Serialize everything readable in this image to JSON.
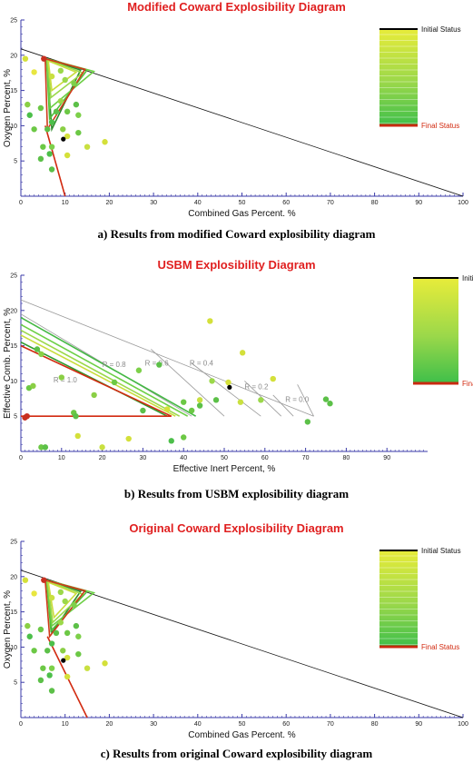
{
  "panels": [
    {
      "title": "Modified Coward Explosibility Diagram",
      "caption": "a) Results from modified Coward explosibility diagram",
      "chart_data": {
        "type": "scatter",
        "title": "Modified Coward Explosibility Diagram",
        "xlabel": "Combined Gas Percent. %",
        "ylabel": "Oxygen Percent, %",
        "xlim": [
          0,
          100
        ],
        "ylim": [
          0,
          25
        ],
        "xticks": [
          0,
          10,
          20,
          30,
          40,
          50,
          60,
          70,
          80,
          90,
          100
        ],
        "yticks": [
          5,
          10,
          15,
          20,
          25
        ],
        "legend": {
          "top": "Initial Status",
          "bottom": "Final Status",
          "placement": "top-right"
        },
        "boundary_line": [
          [
            0,
            20.9
          ],
          [
            100,
            0
          ]
        ],
        "triangles": [
          {
            "color": "#2e8b2e",
            "points": [
              [
                5.8,
                19.5
              ],
              [
                13.5,
                17.9
              ],
              [
                7,
                9.5
              ]
            ]
          },
          {
            "color": "#4fbf3a",
            "points": [
              [
                5.8,
                19.5
              ],
              [
                15,
                17.9
              ],
              [
                6.5,
                11
              ]
            ]
          },
          {
            "color": "#6ccf45",
            "points": [
              [
                5.8,
                19.5
              ],
              [
                16.5,
                17.7
              ],
              [
                6.6,
                12.5
              ]
            ]
          },
          {
            "color": "#9bd84a",
            "points": [
              [
                6,
                19.4
              ],
              [
                14,
                17.5
              ],
              [
                6.8,
                14
              ]
            ]
          },
          {
            "color": "#c9dc3c",
            "points": [
              [
                6.2,
                19.2
              ],
              [
                12.5,
                17.6
              ],
              [
                7,
                15
              ]
            ]
          },
          {
            "color": "#d03a1a",
            "points": [
              [
                5.5,
                19.5
              ],
              [
                14.5,
                18
              ],
              [
                6,
                9.5
              ]
            ]
          }
        ],
        "final_line": [
          [
            5.5,
            10
          ],
          [
            10,
            0
          ]
        ],
        "points": [
          {
            "x": 1,
            "y": 19.5,
            "c": "#d4e03a"
          },
          {
            "x": 1.5,
            "y": 13,
            "c": "#8acf45"
          },
          {
            "x": 3,
            "y": 17.6,
            "c": "#e8e640"
          },
          {
            "x": 4.5,
            "y": 12.5,
            "c": "#6cc845"
          },
          {
            "x": 2,
            "y": 11.5,
            "c": "#4cbf4a"
          },
          {
            "x": 3,
            "y": 9.5,
            "c": "#6cc845"
          },
          {
            "x": 5.2,
            "y": 19.5,
            "c": "#c83020"
          },
          {
            "x": 7,
            "y": 17,
            "c": "#c9e040"
          },
          {
            "x": 9,
            "y": 17.8,
            "c": "#9bd84a"
          },
          {
            "x": 10,
            "y": 16.5,
            "c": "#9bd84a"
          },
          {
            "x": 12,
            "y": 16,
            "c": "#7dd04a"
          },
          {
            "x": 12.5,
            "y": 13,
            "c": "#5cc048"
          },
          {
            "x": 13,
            "y": 11.5,
            "c": "#7dd04a"
          },
          {
            "x": 9,
            "y": 13.5,
            "c": "#9bd84a"
          },
          {
            "x": 8,
            "y": 12,
            "c": "#5cc048"
          },
          {
            "x": 7,
            "y": 10.5,
            "c": "#4cbf4a"
          },
          {
            "x": 6,
            "y": 9.5,
            "c": "#5cc048"
          },
          {
            "x": 9.5,
            "y": 9.5,
            "c": "#8acf45"
          },
          {
            "x": 10.5,
            "y": 8.5,
            "c": "#d4e03a"
          },
          {
            "x": 9.6,
            "y": 8.1,
            "c": "#000000"
          },
          {
            "x": 5,
            "y": 7,
            "c": "#6cc845"
          },
          {
            "x": 7,
            "y": 7,
            "c": "#7dd04a"
          },
          {
            "x": 6.5,
            "y": 6,
            "c": "#4cbf4a"
          },
          {
            "x": 4.5,
            "y": 5.3,
            "c": "#5cc048"
          },
          {
            "x": 7,
            "y": 3.8,
            "c": "#5cc048"
          },
          {
            "x": 10.5,
            "y": 5.8,
            "c": "#d4e03a"
          },
          {
            "x": 15,
            "y": 7,
            "c": "#c9e040"
          },
          {
            "x": 19,
            "y": 7.7,
            "c": "#d4e03a"
          },
          {
            "x": 13,
            "y": 9,
            "c": "#6cc845"
          },
          {
            "x": 10.5,
            "y": 12,
            "c": "#6cc845"
          }
        ]
      }
    },
    {
      "title": "USBM Explosibility Diagram",
      "caption": "b) Results from USBM explosibility diagram",
      "chart_data": {
        "type": "scatter",
        "title": "USBM Explosibility Diagram",
        "xlabel": "Effective Inert Percent, %",
        "ylabel": "Effective Comb. Percent, %",
        "xlim": [
          0,
          100
        ],
        "ylim": [
          0,
          25
        ],
        "xticks": [
          0,
          10,
          20,
          30,
          40,
          50,
          60,
          70,
          80,
          90
        ],
        "yticks": [
          5,
          10,
          15,
          20,
          25
        ],
        "legend": {
          "top": "Initial Status",
          "bottom": "Final Status",
          "placement": "top-right"
        },
        "r_labels": [
          {
            "text": "R = 1.0",
            "x": 8,
            "y": 9.8
          },
          {
            "text": "R = 0.8",
            "x": 20,
            "y": 12
          },
          {
            "text": "R = 0.6",
            "x": 30.5,
            "y": 12.2
          },
          {
            "text": "R = 0.4",
            "x": 41.5,
            "y": 12.2
          },
          {
            "text": "R = 0.2",
            "x": 55,
            "y": 8.8
          },
          {
            "text": "R = 0.0",
            "x": 65,
            "y": 7
          }
        ],
        "gray_lines": [
          [
            [
              0,
              21.5
            ],
            [
              72,
              5
            ]
          ],
          [
            [
              42,
              5
            ],
            [
              0,
              19.5
            ]
          ],
          [
            [
              72,
              5
            ],
            [
              68,
              9.5
            ]
          ],
          [
            [
              50,
              5
            ],
            [
              32,
              14.5
            ]
          ],
          [
            [
              59,
              5
            ],
            [
              42,
              12.5
            ]
          ],
          [
            [
              64,
              5
            ],
            [
              55,
              10
            ]
          ],
          [
            [
              67,
              5
            ],
            [
              62,
              8
            ]
          ]
        ],
        "green_lines": [
          {
            "color": "#44b844",
            "points": [
              [
                0,
                19
              ],
              [
                43,
                5
              ]
            ]
          },
          {
            "color": "#6ccf45",
            "points": [
              [
                0,
                18
              ],
              [
                41,
                5
              ]
            ]
          },
          {
            "color": "#9bd84a",
            "points": [
              [
                0,
                17.2
              ],
              [
                39,
                5
              ]
            ]
          },
          {
            "color": "#c9dc3c",
            "points": [
              [
                0,
                16.5
              ],
              [
                38,
                5
              ]
            ]
          },
          {
            "color": "#2e9b2e",
            "points": [
              [
                0,
                15.5
              ],
              [
                36,
                5
              ]
            ]
          }
        ],
        "red_lines": [
          {
            "points": [
              [
                0,
                15
              ],
              [
                37,
                5
              ]
            ]
          },
          {
            "points": [
              [
                0,
                5
              ],
              [
                37,
                5
              ]
            ]
          }
        ],
        "points": [
          {
            "x": 1,
            "y": 4.8,
            "c": "#c83020"
          },
          {
            "x": 1.5,
            "y": 5,
            "c": "#c83020"
          },
          {
            "x": 2,
            "y": 9,
            "c": "#6cc845"
          },
          {
            "x": 3,
            "y": 9.3,
            "c": "#8acf45"
          },
          {
            "x": 4,
            "y": 14.5,
            "c": "#5cc048"
          },
          {
            "x": 5,
            "y": 13.8,
            "c": "#8acf45"
          },
          {
            "x": 10,
            "y": 10.5,
            "c": "#8acf45"
          },
          {
            "x": 13,
            "y": 5.5,
            "c": "#6cc845"
          },
          {
            "x": 13.5,
            "y": 5,
            "c": "#5cc048"
          },
          {
            "x": 14,
            "y": 2.2,
            "c": "#d4e03a"
          },
          {
            "x": 5,
            "y": 0.6,
            "c": "#6cc845"
          },
          {
            "x": 6,
            "y": 0.6,
            "c": "#5cc048"
          },
          {
            "x": 20,
            "y": 0.6,
            "c": "#c9e040"
          },
          {
            "x": 26.5,
            "y": 1.8,
            "c": "#d4e03a"
          },
          {
            "x": 18,
            "y": 8,
            "c": "#8acf45"
          },
          {
            "x": 23,
            "y": 9.8,
            "c": "#6cc845"
          },
          {
            "x": 29,
            "y": 11.5,
            "c": "#7dd04a"
          },
          {
            "x": 30,
            "y": 5.8,
            "c": "#5cc048"
          },
          {
            "x": 34,
            "y": 12.3,
            "c": "#5cc048"
          },
          {
            "x": 37,
            "y": 1.5,
            "c": "#4cbf4a"
          },
          {
            "x": 40,
            "y": 2,
            "c": "#6cc845"
          },
          {
            "x": 40,
            "y": 7,
            "c": "#6cc845"
          },
          {
            "x": 44,
            "y": 7.3,
            "c": "#c9e040"
          },
          {
            "x": 46.5,
            "y": 18.5,
            "c": "#d4e03a"
          },
          {
            "x": 47,
            "y": 10,
            "c": "#9bd84a"
          },
          {
            "x": 48,
            "y": 7.3,
            "c": "#5cc048"
          },
          {
            "x": 51,
            "y": 9.8,
            "c": "#d4e03a"
          },
          {
            "x": 51.3,
            "y": 9.1,
            "c": "#000000"
          },
          {
            "x": 54.5,
            "y": 14,
            "c": "#d4e03a"
          },
          {
            "x": 54,
            "y": 7,
            "c": "#c9e040"
          },
          {
            "x": 59,
            "y": 7.3,
            "c": "#9bd84a"
          },
          {
            "x": 62,
            "y": 10.3,
            "c": "#d4e03a"
          },
          {
            "x": 75,
            "y": 7.4,
            "c": "#5cc048"
          },
          {
            "x": 76,
            "y": 6.8,
            "c": "#5cc048"
          },
          {
            "x": 70.5,
            "y": 4.2,
            "c": "#5cc048"
          },
          {
            "x": 42,
            "y": 5.8,
            "c": "#6cc845"
          },
          {
            "x": 36,
            "y": 6,
            "c": "#d4e03a"
          },
          {
            "x": 44,
            "y": 6.5,
            "c": "#5cc048"
          }
        ]
      }
    },
    {
      "title": "Original Coward Explosibility Diagram",
      "caption": "c) Results from original Coward explosibility diagram",
      "chart_data": {
        "type": "scatter",
        "title": "Original Coward Explosibility Diagram",
        "xlabel": "Combined Gas Percent. %",
        "ylabel": "Oxygen Percent, %",
        "xlim": [
          0,
          100
        ],
        "ylim": [
          0,
          25
        ],
        "xticks": [
          0,
          10,
          20,
          30,
          40,
          50,
          60,
          70,
          80,
          90,
          100
        ],
        "yticks": [
          5,
          10,
          15,
          20,
          25
        ],
        "legend": {
          "top": "Initial Status",
          "bottom": "Final Status",
          "placement": "top-right"
        },
        "boundary_line": [
          [
            0,
            20.9
          ],
          [
            100,
            0
          ]
        ],
        "triangles": [
          {
            "color": "#2e8b2e",
            "points": [
              [
                5.8,
                19.5
              ],
              [
                13.5,
                17.9
              ],
              [
                7,
                12
              ]
            ]
          },
          {
            "color": "#4fbf3a",
            "points": [
              [
                5.8,
                19.5
              ],
              [
                15,
                17.9
              ],
              [
                6.8,
                12.3
              ]
            ]
          },
          {
            "color": "#6ccf45",
            "points": [
              [
                5.8,
                19.5
              ],
              [
                16.5,
                17.7
              ],
              [
                7,
                13
              ]
            ]
          },
          {
            "color": "#9bd84a",
            "points": [
              [
                6,
                19.4
              ],
              [
                14,
                17.5
              ],
              [
                7.2,
                13.5
              ]
            ]
          },
          {
            "color": "#c9dc3c",
            "points": [
              [
                6.2,
                19.2
              ],
              [
                12.5,
                17.6
              ],
              [
                7.5,
                14.2
              ]
            ]
          },
          {
            "color": "#d03a1a",
            "points": [
              [
                5.5,
                19.5
              ],
              [
                14.5,
                18
              ],
              [
                6.5,
                11.5
              ]
            ]
          }
        ],
        "final_line": [
          [
            6,
            11.5
          ],
          [
            15,
            0
          ]
        ],
        "points": [
          {
            "x": 1,
            "y": 19.5,
            "c": "#d4e03a"
          },
          {
            "x": 1.5,
            "y": 13,
            "c": "#8acf45"
          },
          {
            "x": 3,
            "y": 17.6,
            "c": "#e8e640"
          },
          {
            "x": 4.5,
            "y": 12.5,
            "c": "#6cc845"
          },
          {
            "x": 2,
            "y": 11.5,
            "c": "#4cbf4a"
          },
          {
            "x": 3,
            "y": 9.5,
            "c": "#6cc845"
          },
          {
            "x": 5.2,
            "y": 19.5,
            "c": "#c83020"
          },
          {
            "x": 7,
            "y": 17,
            "c": "#c9e040"
          },
          {
            "x": 9,
            "y": 17.8,
            "c": "#9bd84a"
          },
          {
            "x": 10,
            "y": 16.5,
            "c": "#9bd84a"
          },
          {
            "x": 12,
            "y": 16,
            "c": "#7dd04a"
          },
          {
            "x": 12.5,
            "y": 13,
            "c": "#5cc048"
          },
          {
            "x": 13,
            "y": 11.5,
            "c": "#7dd04a"
          },
          {
            "x": 9,
            "y": 13.5,
            "c": "#9bd84a"
          },
          {
            "x": 8,
            "y": 12,
            "c": "#5cc048"
          },
          {
            "x": 7,
            "y": 10.5,
            "c": "#4cbf4a"
          },
          {
            "x": 6,
            "y": 9.5,
            "c": "#5cc048"
          },
          {
            "x": 9.5,
            "y": 9.5,
            "c": "#8acf45"
          },
          {
            "x": 10.5,
            "y": 8.5,
            "c": "#d4e03a"
          },
          {
            "x": 9.6,
            "y": 8.1,
            "c": "#000000"
          },
          {
            "x": 5,
            "y": 7,
            "c": "#6cc845"
          },
          {
            "x": 7,
            "y": 7,
            "c": "#7dd04a"
          },
          {
            "x": 6.5,
            "y": 6,
            "c": "#4cbf4a"
          },
          {
            "x": 4.5,
            "y": 5.3,
            "c": "#5cc048"
          },
          {
            "x": 7,
            "y": 3.8,
            "c": "#5cc048"
          },
          {
            "x": 10.5,
            "y": 5.8,
            "c": "#d4e03a"
          },
          {
            "x": 15,
            "y": 7,
            "c": "#c9e040"
          },
          {
            "x": 19,
            "y": 7.7,
            "c": "#d4e03a"
          },
          {
            "x": 13,
            "y": 9,
            "c": "#6cc845"
          },
          {
            "x": 10.5,
            "y": 12,
            "c": "#6cc845"
          }
        ]
      }
    }
  ]
}
